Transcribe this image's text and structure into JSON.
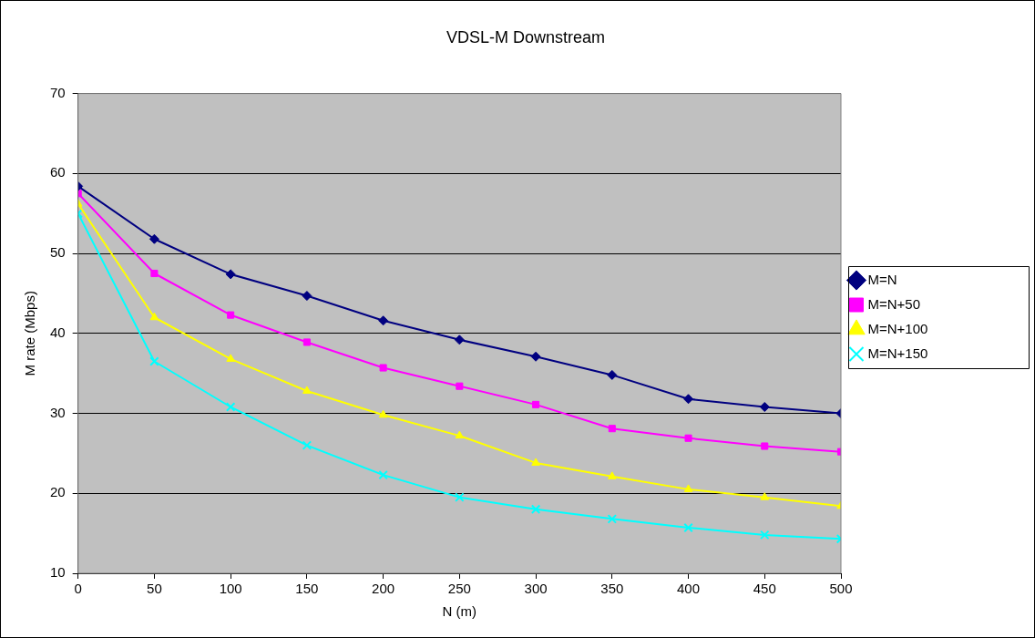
{
  "chart_data": {
    "type": "line",
    "title": "VDSL-M Downstream",
    "xlabel": "N (m)",
    "ylabel": "M rate (Mbps)",
    "x": [
      0,
      50,
      100,
      150,
      200,
      250,
      300,
      350,
      400,
      450,
      500
    ],
    "xlim": [
      0,
      500
    ],
    "xticks": [
      0,
      50,
      100,
      150,
      200,
      250,
      300,
      350,
      400,
      450,
      500
    ],
    "ylim": [
      10,
      70
    ],
    "yticks": [
      10,
      20,
      30,
      40,
      50,
      60,
      70
    ],
    "grid": "y",
    "legend": "right",
    "series": [
      {
        "name": "M=N",
        "color": "#000080",
        "marker": "diamond",
        "values": [
          58.4,
          51.8,
          47.4,
          44.7,
          41.6,
          39.2,
          37.1,
          34.8,
          31.8,
          30.8,
          30.0
        ]
      },
      {
        "name": "M=N+50",
        "color": "#ff00ff",
        "marker": "square",
        "values": [
          57.5,
          47.5,
          42.3,
          38.9,
          35.7,
          33.4,
          31.1,
          28.1,
          26.9,
          25.9,
          25.2
        ]
      },
      {
        "name": "M=N+100",
        "color": "#ffff00",
        "marker": "triangle",
        "values": [
          56.2,
          42.0,
          36.8,
          32.8,
          29.8,
          27.2,
          23.8,
          22.1,
          20.5,
          19.5,
          18.4
        ]
      },
      {
        "name": "M=N+150",
        "color": "#00ffff",
        "marker": "cross",
        "values": [
          55.0,
          36.5,
          30.8,
          26.0,
          22.3,
          19.5,
          18.0,
          16.8,
          15.7,
          14.8,
          14.3
        ]
      }
    ]
  }
}
